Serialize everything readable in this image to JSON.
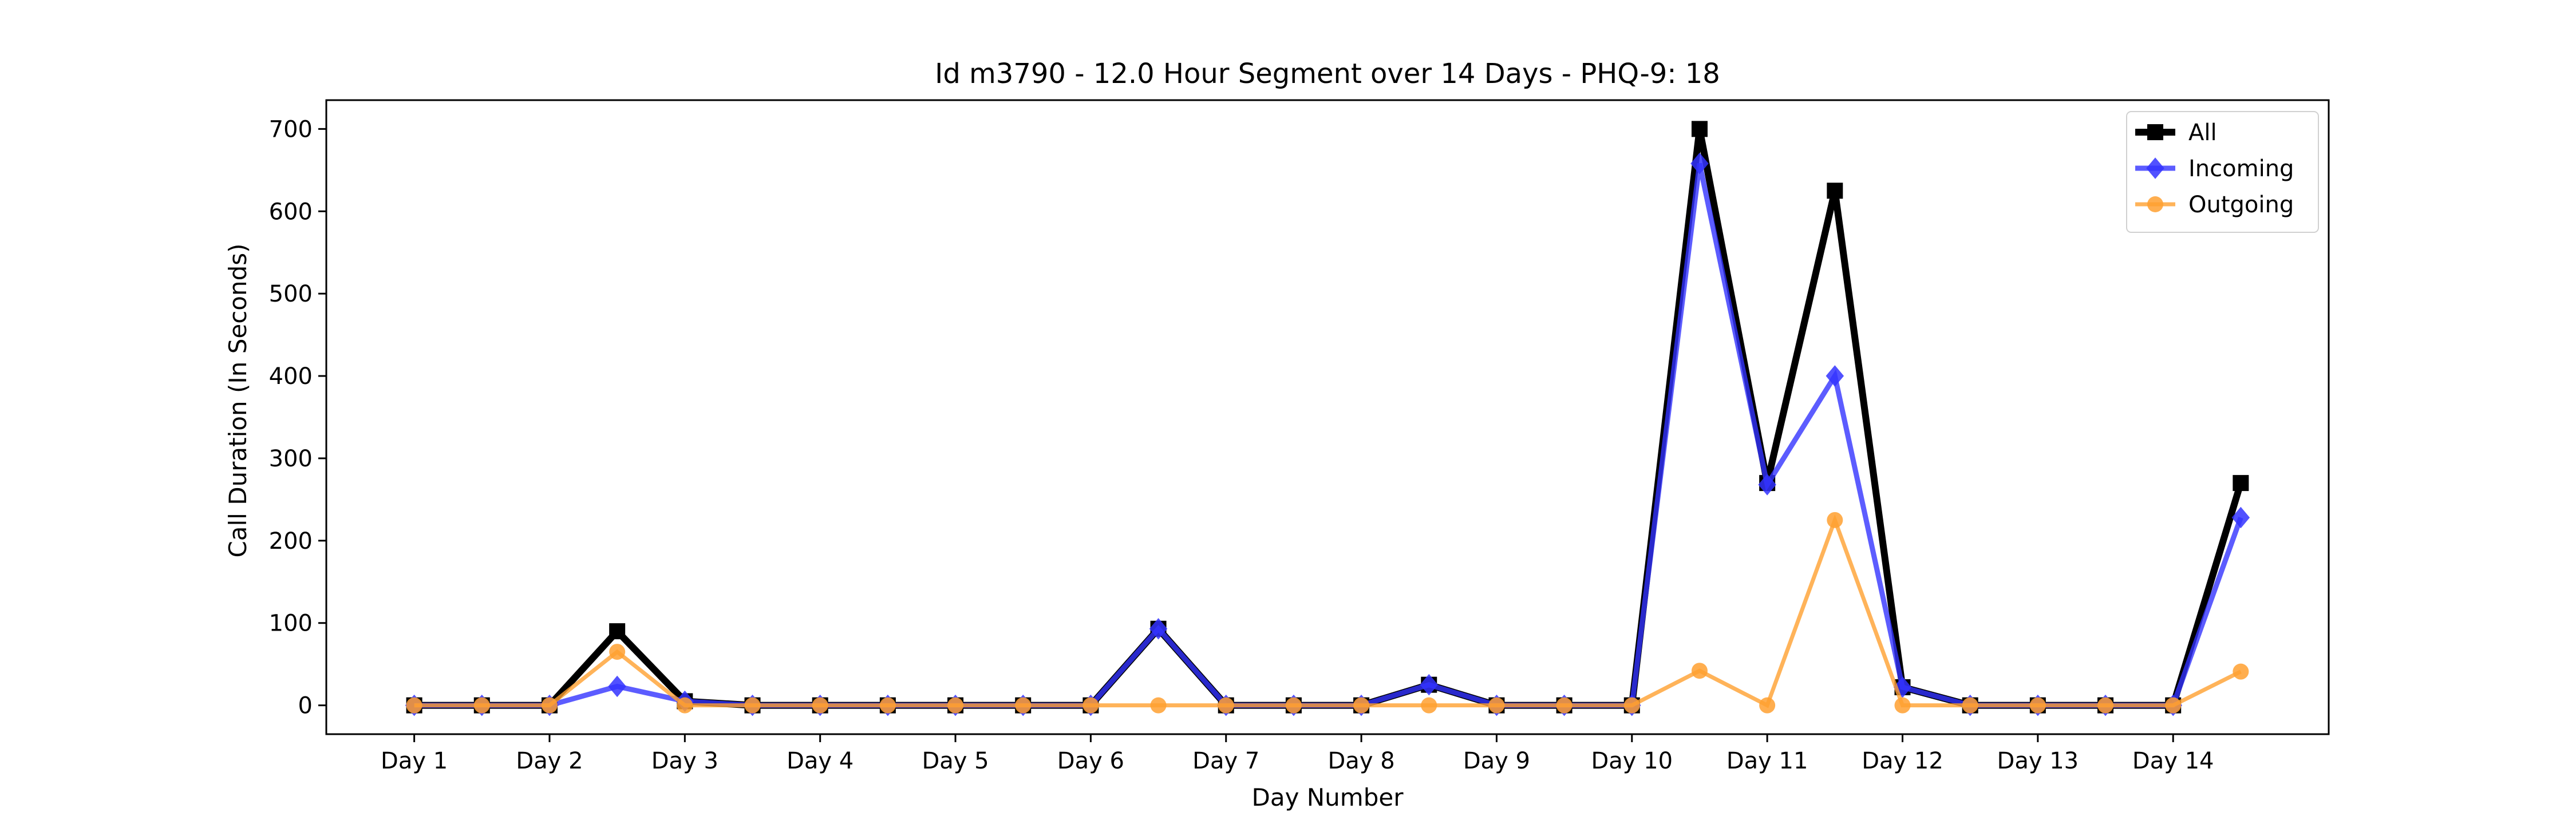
{
  "chart_data": {
    "type": "line",
    "title": "Id m3790 - 12.0 Hour Segment over 14 Days - PHQ-9: 18",
    "xlabel": "Day Number",
    "ylabel": "Call Duration (In Seconds)",
    "categories": [
      "Day 1",
      "Day 2",
      "Day 3",
      "Day 4",
      "Day 5",
      "Day 6",
      "Day 7",
      "Day 8",
      "Day 9",
      "Day 10",
      "Day 11",
      "Day 12",
      "Day 13",
      "Day 14"
    ],
    "x": [
      1,
      1.5,
      2,
      2.5,
      3,
      3.5,
      4,
      4.5,
      5,
      5.5,
      6,
      6.5,
      7,
      7.5,
      8,
      8.5,
      9,
      9.5,
      10,
      10.5,
      11,
      11.5,
      12,
      12.5,
      13,
      13.5,
      14,
      14.5
    ],
    "xlim": [
      0.35,
      15.15
    ],
    "ylim": [
      -35,
      735
    ],
    "yticks": [
      0,
      100,
      200,
      300,
      400,
      500,
      600,
      700
    ],
    "grid": false,
    "legend_position": "top-right",
    "series": [
      {
        "name": "All",
        "color": "#000000",
        "marker": "square",
        "values": [
          0,
          0,
          0,
          90,
          5,
          0,
          0,
          0,
          0,
          0,
          0,
          93,
          0,
          0,
          0,
          25,
          0,
          0,
          0,
          700,
          270,
          625,
          22,
          0,
          0,
          0,
          0,
          270
        ]
      },
      {
        "name": "Incoming",
        "color": "#3333ff",
        "marker": "diamond",
        "values": [
          0,
          0,
          0,
          23,
          5,
          0,
          0,
          0,
          0,
          0,
          0,
          93,
          0,
          0,
          0,
          25,
          0,
          0,
          0,
          658,
          268,
          400,
          22,
          0,
          0,
          0,
          0,
          228
        ]
      },
      {
        "name": "Outgoing",
        "color": "#ffa030",
        "marker": "circle",
        "values": [
          0,
          0,
          0,
          65,
          0,
          0,
          0,
          0,
          0,
          0,
          0,
          0,
          0,
          0,
          0,
          0,
          0,
          0,
          0,
          42,
          0,
          225,
          0,
          0,
          0,
          0,
          0,
          41
        ]
      }
    ]
  }
}
